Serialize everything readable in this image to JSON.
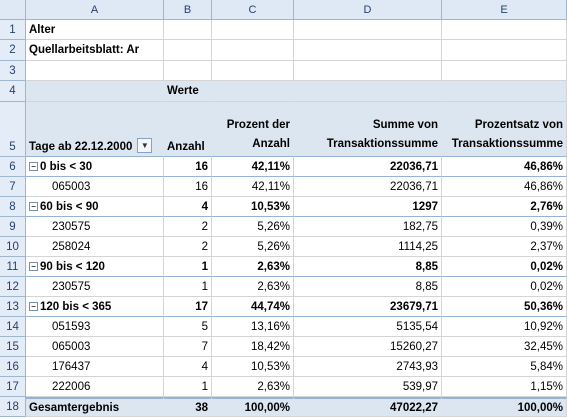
{
  "columns": [
    "A",
    "B",
    "C",
    "D",
    "E"
  ],
  "rows": {
    "r1": {
      "num": "1",
      "a": "Alter"
    },
    "r2": {
      "num": "2",
      "a": "Quellarbeitsblatt: Ar"
    },
    "r3": {
      "num": "3"
    },
    "r4": {
      "num": "4",
      "b": "Werte"
    },
    "r5": {
      "num": "5",
      "a": "Tage ab 22.12.2000",
      "b": "Anzahl",
      "c1": "Prozent der",
      "c2": "Anzahl",
      "d1": "Summe von",
      "d2": "Transaktionssumme",
      "e1": "Prozentsatz von",
      "e2": "Transaktionssumme"
    },
    "data": [
      {
        "num": "6",
        "a": "0 bis < 30",
        "b": "16",
        "c": "42,11%",
        "d": "22036,71",
        "e": "46,86%"
      },
      {
        "num": "7",
        "a": "065003",
        "b": "16",
        "c": "42,11%",
        "d": "22036,71",
        "e": "46,86%"
      },
      {
        "num": "8",
        "a": "60 bis < 90",
        "b": "4",
        "c": "10,53%",
        "d": "1297",
        "e": "2,76%"
      },
      {
        "num": "9",
        "a": "230575",
        "b": "2",
        "c": "5,26%",
        "d": "182,75",
        "e": "0,39%"
      },
      {
        "num": "10",
        "a": "258024",
        "b": "2",
        "c": "5,26%",
        "d": "1114,25",
        "e": "2,37%"
      },
      {
        "num": "11",
        "a": "90 bis < 120",
        "b": "1",
        "c": "2,63%",
        "d": "8,85",
        "e": "0,02%"
      },
      {
        "num": "12",
        "a": "230575",
        "b": "1",
        "c": "2,63%",
        "d": "8,85",
        "e": "0,02%"
      },
      {
        "num": "13",
        "a": "120 bis < 365",
        "b": "17",
        "c": "44,74%",
        "d": "23679,71",
        "e": "50,36%"
      },
      {
        "num": "14",
        "a": "051593",
        "b": "5",
        "c": "13,16%",
        "d": "5135,54",
        "e": "10,92%"
      },
      {
        "num": "15",
        "a": "065003",
        "b": "7",
        "c": "18,42%",
        "d": "15260,27",
        "e": "32,45%"
      },
      {
        "num": "16",
        "a": "176437",
        "b": "4",
        "c": "10,53%",
        "d": "2743,93",
        "e": "5,84%"
      },
      {
        "num": "17",
        "a": "222006",
        "b": "1",
        "c": "2,63%",
        "d": "539,97",
        "e": "1,15%"
      },
      {
        "num": "18",
        "a": "Gesamtergebnis",
        "b": "38",
        "c": "100,00%",
        "d": "47022,27",
        "e": "100,00%"
      }
    ]
  },
  "icons": {
    "collapse": "−",
    "dropdown": "▼"
  }
}
